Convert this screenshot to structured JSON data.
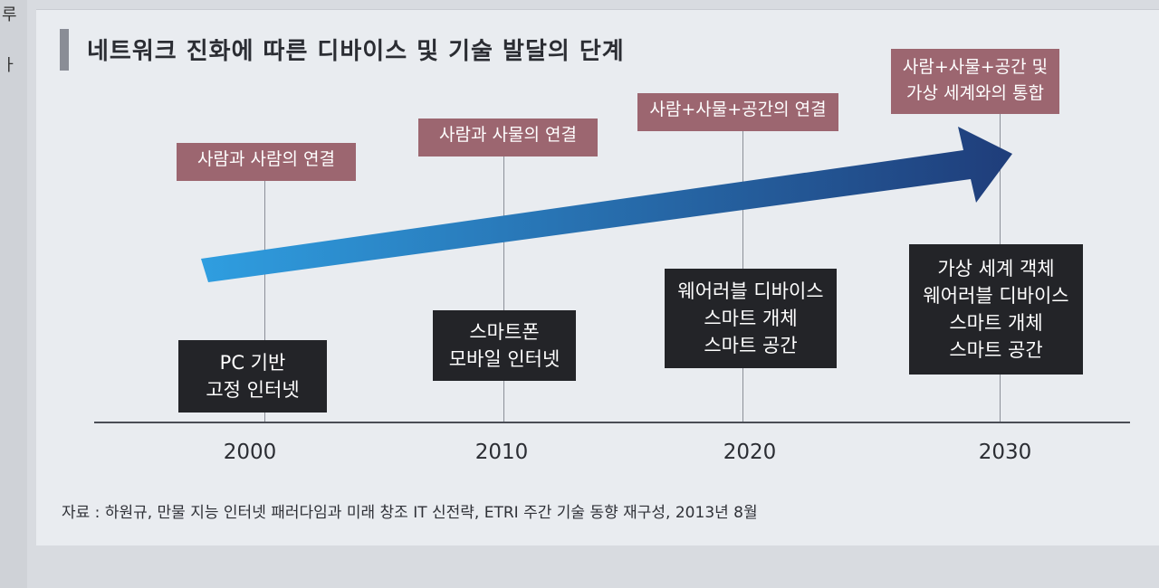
{
  "page_edge": {
    "chars": [
      "루",
      "ㅏ"
    ]
  },
  "figure": {
    "title": "네트워크 진화에 따른 디바이스 및 기술 발달의 단계",
    "stages": [
      {
        "year": "2000",
        "top_label": [
          "사람과 사람의 연결"
        ],
        "tech": [
          "PC 기반",
          "고정 인터넷"
        ]
      },
      {
        "year": "2010",
        "top_label": [
          "사람과 사물의 연결"
        ],
        "tech": [
          "스마트폰",
          "모바일 인터넷"
        ]
      },
      {
        "year": "2020",
        "top_label": [
          "사람+사물+공간의 연결"
        ],
        "tech": [
          "웨어러블 디바이스",
          "스마트 개체",
          "스마트 공간"
        ]
      },
      {
        "year": "2030",
        "top_label": [
          "사람+사물+공간 및",
          "가상 세계와의 통합"
        ],
        "tech": [
          "가상 세계 객체",
          "웨어러블 디바이스",
          "스마트 개체",
          "스마트 공간"
        ]
      }
    ],
    "source": "자료 : 하원규, 만물 지능 인터넷 패러다임과 미래 창조 IT 신전략, ETRI 주간 기술 동향 재구성, 2013년 8월",
    "colors": {
      "top_label_bg": "#9c6670",
      "tech_box_bg": "#232428",
      "arrow_start": "#2f9ee0",
      "arrow_end": "#1f3d7a"
    }
  }
}
